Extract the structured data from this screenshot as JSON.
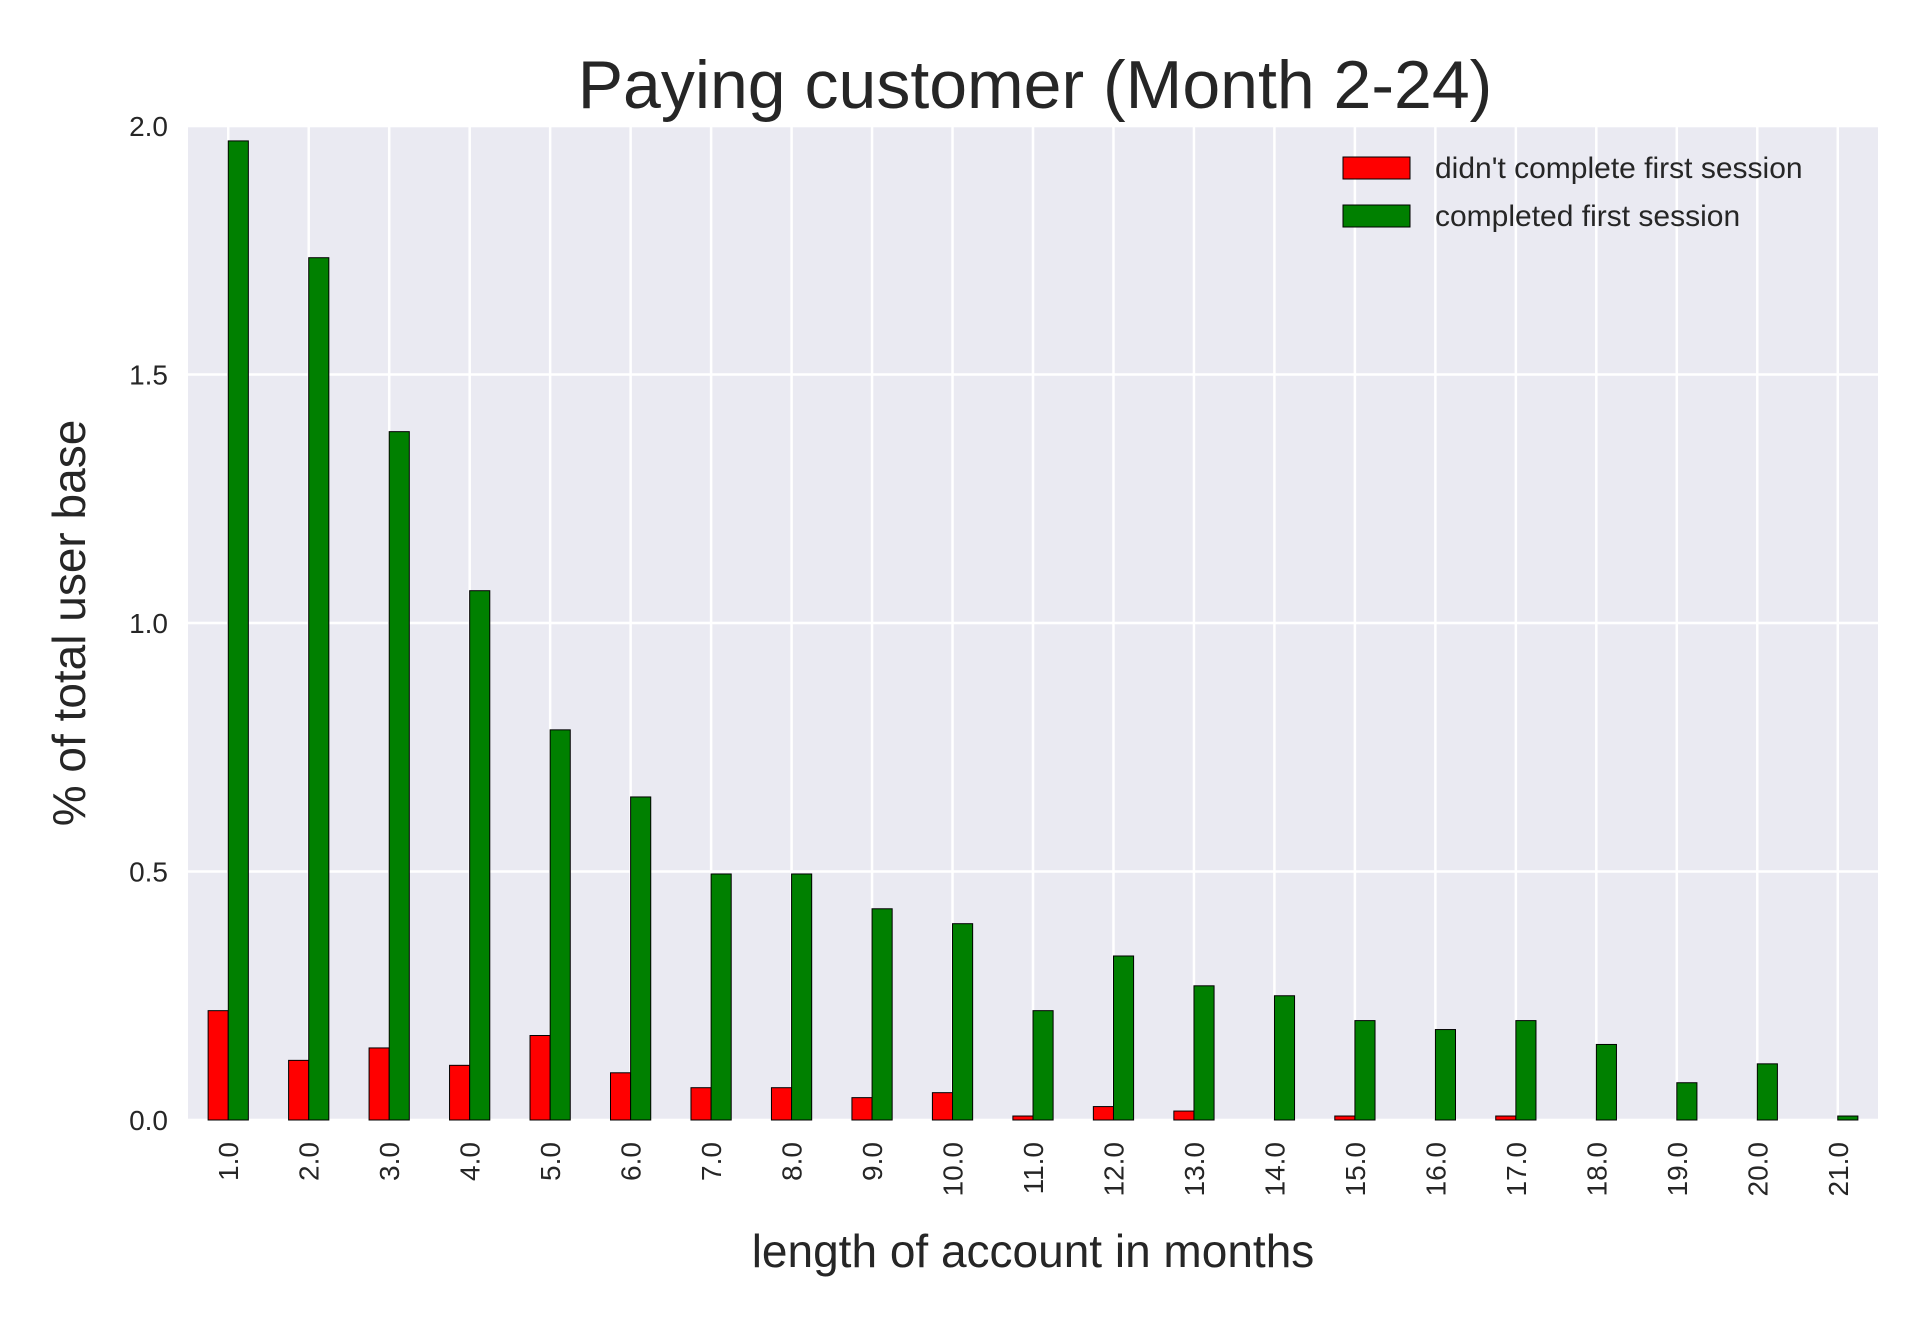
{
  "chart_data": {
    "type": "bar",
    "title": "Paying customer (Month 2-24)",
    "xlabel": "length of account in months",
    "ylabel": "% of total user base",
    "categories": [
      "1.0",
      "2.0",
      "3.0",
      "4.0",
      "5.0",
      "6.0",
      "7.0",
      "8.0",
      "9.0",
      "10.0",
      "11.0",
      "12.0",
      "13.0",
      "14.0",
      "15.0",
      "16.0",
      "17.0",
      "18.0",
      "19.0",
      "20.0",
      "21.0"
    ],
    "series": [
      {
        "name": "didn't complete first session",
        "color": "#ff0000",
        "values": [
          0.22,
          0.12,
          0.145,
          0.11,
          0.17,
          0.095,
          0.065,
          0.065,
          0.045,
          0.055,
          0.008,
          0.027,
          0.018,
          0,
          0.008,
          0,
          0.008,
          0,
          0,
          0,
          0
        ]
      },
      {
        "name": "completed first session",
        "color": "#008000",
        "values": [
          1.97,
          1.735,
          1.385,
          1.065,
          0.785,
          0.65,
          0.495,
          0.495,
          0.425,
          0.395,
          0.22,
          0.33,
          0.27,
          0.25,
          0.2,
          0.182,
          0.2,
          0.152,
          0.075,
          0.113,
          0.008
        ]
      }
    ],
    "ylim": [
      0,
      2.0
    ],
    "yticks": [
      "0.0",
      "0.5",
      "1.0",
      "1.5",
      "2.0"
    ],
    "grid": true,
    "legend_position": "top-right",
    "background_color": "#eaeaf2"
  }
}
